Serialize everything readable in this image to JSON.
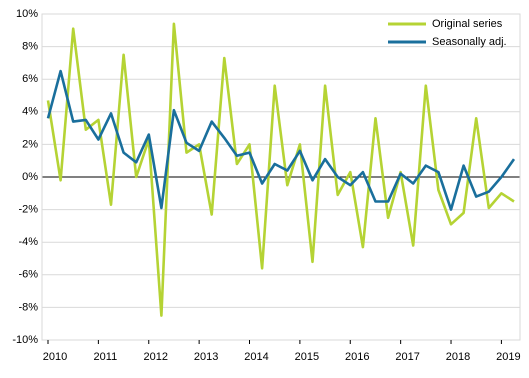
{
  "chart_data": {
    "type": "line",
    "categories": [
      "2010",
      null,
      null,
      null,
      "2011",
      null,
      null,
      null,
      "2012",
      null,
      null,
      null,
      "2013",
      null,
      null,
      null,
      "2014",
      null,
      null,
      null,
      "2015",
      null,
      null,
      null,
      "2016",
      null,
      null,
      null,
      "2017",
      null,
      null,
      null,
      "2018",
      null,
      null,
      null,
      "2019",
      null
    ],
    "series": [
      {
        "name": "Original series",
        "color": "#b5d334",
        "values": [
          4.7,
          -0.2,
          9.1,
          2.9,
          3.5,
          -1.7,
          7.5,
          0.0,
          2.3,
          -8.5,
          9.4,
          1.5,
          2.0,
          -2.3,
          7.3,
          0.8,
          2.0,
          -5.6,
          5.6,
          -0.5,
          2.0,
          -5.2,
          5.6,
          -1.1,
          0.3,
          -4.3,
          3.6,
          -2.5,
          0.3,
          -4.2,
          5.6,
          -0.8,
          -2.9,
          -2.2,
          3.6,
          -1.9,
          -1.0,
          -1.5
        ]
      },
      {
        "name": "Seasonally adj.",
        "color": "#1a6f9c",
        "values": [
          3.6,
          6.5,
          3.4,
          3.5,
          2.3,
          3.9,
          1.5,
          0.9,
          2.6,
          -1.9,
          4.1,
          2.1,
          1.6,
          3.4,
          2.4,
          1.3,
          1.5,
          -0.4,
          0.8,
          0.4,
          1.6,
          -0.2,
          1.1,
          0.0,
          -0.5,
          0.3,
          -1.5,
          -1.5,
          0.2,
          -0.4,
          0.7,
          0.3,
          -2.0,
          0.7,
          -1.2,
          -0.9,
          0.0,
          1.1
        ]
      }
    ],
    "ylim": [
      -10,
      10
    ],
    "yticks": [
      {
        "value": -10,
        "label": "-10%"
      },
      {
        "value": -8,
        "label": "-8%"
      },
      {
        "value": -6,
        "label": "-6%"
      },
      {
        "value": -4,
        "label": "-4%"
      },
      {
        "value": -2,
        "label": "-2%"
      },
      {
        "value": 0,
        "label": "0%"
      },
      {
        "value": 2,
        "label": "2%"
      },
      {
        "value": 4,
        "label": "4%"
      },
      {
        "value": 6,
        "label": "6%"
      },
      {
        "value": 8,
        "label": "8%"
      },
      {
        "value": 10,
        "label": "10%"
      }
    ],
    "grid": true,
    "legend": "top-right"
  }
}
